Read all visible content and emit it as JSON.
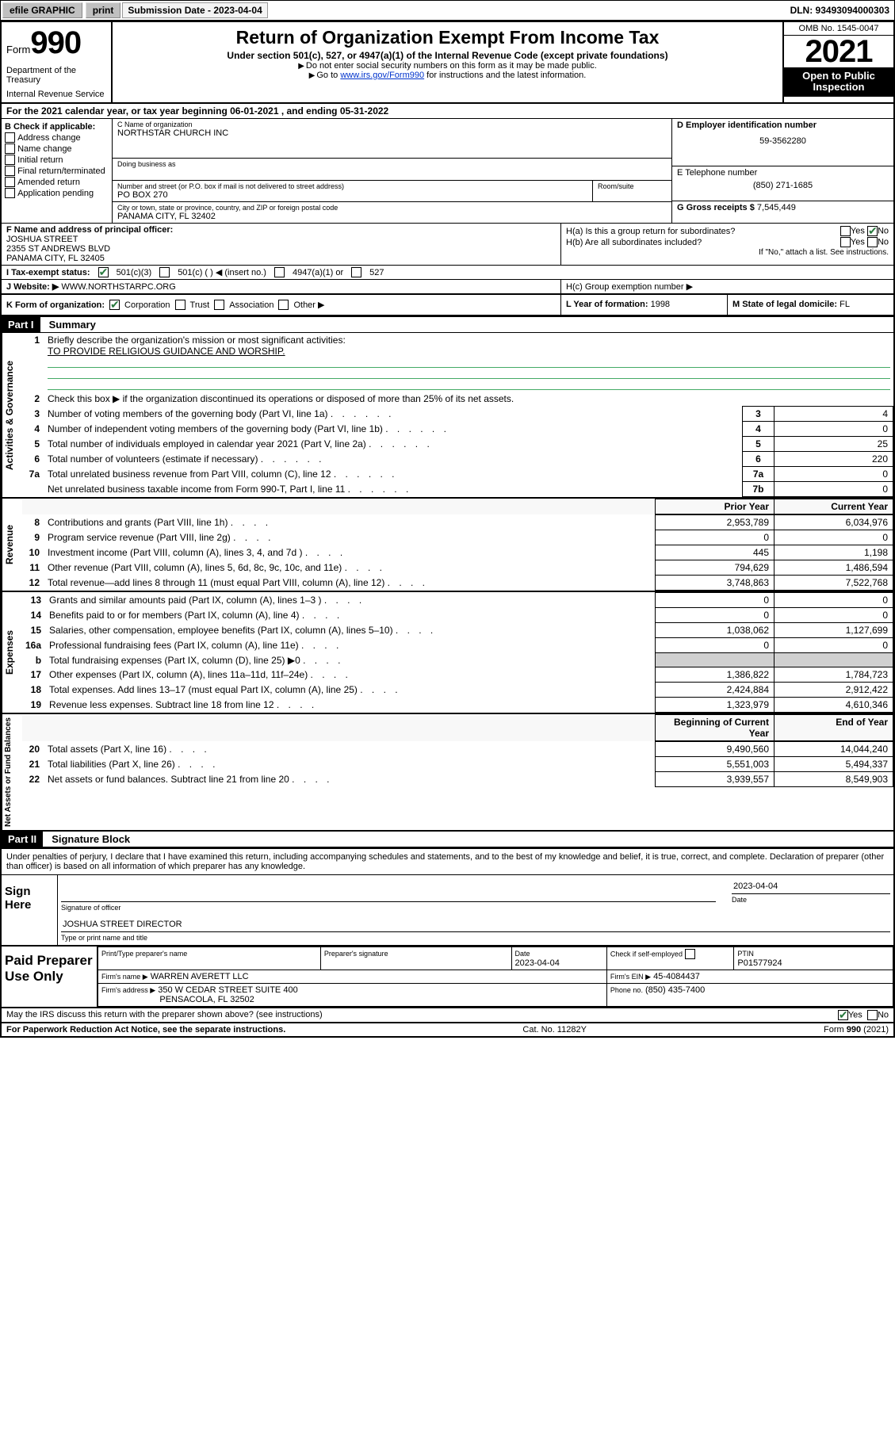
{
  "toolbar": {
    "efile_label": "efile GRAPHIC",
    "print_label": "print",
    "submission_label": "Submission Date - 2023-04-04",
    "dln": "DLN: 93493094000303"
  },
  "header": {
    "form_prefix": "Form",
    "form_number": "990",
    "dept": "Department of the Treasury",
    "irs": "Internal Revenue Service",
    "title": "Return of Organization Exempt From Income Tax",
    "subtitle": "Under section 501(c), 527, or 4947(a)(1) of the Internal Revenue Code (except private foundations)",
    "note1": "Do not enter social security numbers on this form as it may be made public.",
    "note2_pre": "Go to ",
    "note2_link": "www.irs.gov/Form990",
    "note2_post": " for instructions and the latest information.",
    "omb": "OMB No. 1545-0047",
    "year": "2021",
    "open_public": "Open to Public Inspection"
  },
  "row_a": {
    "prefix": "A",
    "text": "For the 2021 calendar year, or tax year beginning 06-01-2021   , and ending 05-31-2022"
  },
  "col_b": {
    "header": "B Check if applicable:",
    "items": [
      "Address change",
      "Name change",
      "Initial return",
      "Final return/terminated",
      "Amended return",
      "Application pending"
    ]
  },
  "name_box": {
    "label": "C Name of organization",
    "value": "NORTHSTAR CHURCH INC",
    "dba_label": "Doing business as",
    "addr_label": "Number and street (or P.O. box if mail is not delivered to street address)",
    "addr_value": "PO BOX 270",
    "room_label": "Room/suite",
    "city_label": "City or town, state or province, country, and ZIP or foreign postal code",
    "city_value": "PANAMA CITY, FL  32402"
  },
  "d_box": {
    "label": "D Employer identification number",
    "value": "59-3562280"
  },
  "e_box": {
    "label": "E Telephone number",
    "value": "(850) 271-1685"
  },
  "g_box": {
    "label": "G Gross receipts $",
    "value": "7,545,449"
  },
  "f_box": {
    "label": "F Name and address of principal officer:",
    "name": "JOSHUA STREET",
    "addr1": "2355 ST ANDREWS BLVD",
    "addr2": "PANAMA CITY, FL  32405"
  },
  "h_box": {
    "ha": "H(a)  Is this a group return for subordinates?",
    "hb": "H(b)  Are all subordinates included?",
    "hb_note": "If \"No,\" attach a list. See instructions.",
    "hc": "H(c)  Group exemption number ▶",
    "yes": "Yes",
    "no": "No"
  },
  "status_row": {
    "label": "I    Tax-exempt status:",
    "c3": "501(c)(3)",
    "c": "501(c) (  ) ◀ (insert no.)",
    "a1": "4947(a)(1) or",
    "s527": "527"
  },
  "website": {
    "label": "J   Website: ▶",
    "value": "WWW.NORTHSTARPC.ORG"
  },
  "k_row": {
    "label": "K Form of organization:",
    "corp": "Corporation",
    "trust": "Trust",
    "assoc": "Association",
    "other": "Other ▶"
  },
  "l_box": {
    "label": "L Year of formation:",
    "value": "1998"
  },
  "m_box": {
    "label": "M State of legal domicile:",
    "value": "FL"
  },
  "part1": {
    "label": "Part I",
    "title": "Summary"
  },
  "governance": {
    "label": "Activities & Governance",
    "line1_label": "Briefly describe the organization's mission or most significant activities:",
    "line1_value": "TO PROVIDE RELIGIOUS GUIDANCE AND WORSHIP.",
    "line2": "Check this box ▶      if the organization discontinued its operations or disposed of more than 25% of its net assets.",
    "lines": [
      {
        "n": "3",
        "t": "Number of voting members of the governing body (Part VI, line 1a)",
        "b": "3",
        "v": "4"
      },
      {
        "n": "4",
        "t": "Number of independent voting members of the governing body (Part VI, line 1b)",
        "b": "4",
        "v": "0"
      },
      {
        "n": "5",
        "t": "Total number of individuals employed in calendar year 2021 (Part V, line 2a)",
        "b": "5",
        "v": "25"
      },
      {
        "n": "6",
        "t": "Total number of volunteers (estimate if necessary)",
        "b": "6",
        "v": "220"
      },
      {
        "n": "7a",
        "t": "Total unrelated business revenue from Part VIII, column (C), line 12",
        "b": "7a",
        "v": "0"
      },
      {
        "n": "",
        "t": "Net unrelated business taxable income from Form 990-T, Part I, line 11",
        "b": "7b",
        "v": "0"
      }
    ]
  },
  "revenue": {
    "label": "Revenue",
    "prior_header": "Prior Year",
    "current_header": "Current Year",
    "lines": [
      {
        "n": "8",
        "t": "Contributions and grants (Part VIII, line 1h)",
        "p": "2,953,789",
        "c": "6,034,976"
      },
      {
        "n": "9",
        "t": "Program service revenue (Part VIII, line 2g)",
        "p": "0",
        "c": "0"
      },
      {
        "n": "10",
        "t": "Investment income (Part VIII, column (A), lines 3, 4, and 7d )",
        "p": "445",
        "c": "1,198"
      },
      {
        "n": "11",
        "t": "Other revenue (Part VIII, column (A), lines 5, 6d, 8c, 9c, 10c, and 11e)",
        "p": "794,629",
        "c": "1,486,594"
      },
      {
        "n": "12",
        "t": "Total revenue—add lines 8 through 11 (must equal Part VIII, column (A), line 12)",
        "p": "3,748,863",
        "c": "7,522,768"
      }
    ]
  },
  "expenses": {
    "label": "Expenses",
    "lines": [
      {
        "n": "13",
        "t": "Grants and similar amounts paid (Part IX, column (A), lines 1–3 )",
        "p": "0",
        "c": "0"
      },
      {
        "n": "14",
        "t": "Benefits paid to or for members (Part IX, column (A), line 4)",
        "p": "0",
        "c": "0"
      },
      {
        "n": "15",
        "t": "Salaries, other compensation, employee benefits (Part IX, column (A), lines 5–10)",
        "p": "1,038,062",
        "c": "1,127,699"
      },
      {
        "n": "16a",
        "t": "Professional fundraising fees (Part IX, column (A), line 11e)",
        "p": "0",
        "c": "0"
      },
      {
        "n": "b",
        "t": "Total fundraising expenses (Part IX, column (D), line 25) ▶0",
        "p": "",
        "c": "",
        "shade": true
      },
      {
        "n": "17",
        "t": "Other expenses (Part IX, column (A), lines 11a–11d, 11f–24e)",
        "p": "1,386,822",
        "c": "1,784,723"
      },
      {
        "n": "18",
        "t": "Total expenses. Add lines 13–17 (must equal Part IX, column (A), line 25)",
        "p": "2,424,884",
        "c": "2,912,422"
      },
      {
        "n": "19",
        "t": "Revenue less expenses. Subtract line 18 from line 12",
        "p": "1,323,979",
        "c": "4,610,346"
      }
    ]
  },
  "netassets": {
    "label": "Net Assets or Fund Balances",
    "begin_header": "Beginning of Current Year",
    "end_header": "End of Year",
    "lines": [
      {
        "n": "20",
        "t": "Total assets (Part X, line 16)",
        "p": "9,490,560",
        "c": "14,044,240"
      },
      {
        "n": "21",
        "t": "Total liabilities (Part X, line 26)",
        "p": "5,551,003",
        "c": "5,494,337"
      },
      {
        "n": "22",
        "t": "Net assets or fund balances. Subtract line 21 from line 20",
        "p": "3,939,557",
        "c": "8,549,903"
      }
    ]
  },
  "part2": {
    "label": "Part II",
    "title": "Signature Block"
  },
  "sig": {
    "declaration": "Under penalties of perjury, I declare that I have examined this return, including accompanying schedules and statements, and to the best of my knowledge and belief, it is true, correct, and complete. Declaration of preparer (other than officer) is based on all information of which preparer has any knowledge.",
    "sign_here": "Sign Here",
    "sig_officer": "Signature of officer",
    "date_label": "Date",
    "date_value": "2023-04-04",
    "name_title": "JOSHUA STREET  DIRECTOR",
    "name_title_label": "Type or print name and title"
  },
  "prep": {
    "label": "Paid Preparer Use Only",
    "print_name_label": "Print/Type preparer's name",
    "sig_label": "Preparer's signature",
    "date_label": "Date",
    "date_value": "2023-04-04",
    "check_label": "Check       if self-employed",
    "ptin_label": "PTIN",
    "ptin_value": "P01577924",
    "firm_name_label": "Firm's name    ▶",
    "firm_name": "WARREN AVERETT LLC",
    "firm_ein_label": "Firm's EIN ▶",
    "firm_ein": "45-4084437",
    "firm_addr_label": "Firm's address ▶",
    "firm_addr1": "350 W CEDAR STREET SUITE 400",
    "firm_addr2": "PENSACOLA, FL  32502",
    "phone_label": "Phone no.",
    "phone": "(850) 435-7400"
  },
  "footer": {
    "discuss": "May the IRS discuss this return with the preparer shown above? (see instructions)",
    "yes": "Yes",
    "no": "No",
    "paperwork": "For Paperwork Reduction Act Notice, see the separate instructions.",
    "cat": "Cat. No. 11282Y",
    "form": "Form 990 (2021)"
  }
}
